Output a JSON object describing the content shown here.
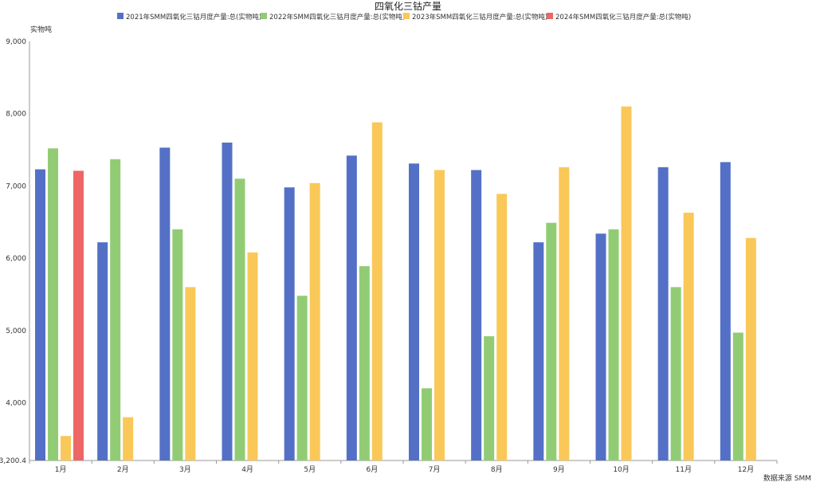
{
  "chart_data": {
    "type": "bar",
    "title": "四氧化三钴产量",
    "ylabel": "实物吨",
    "source": "数据来源 SMM",
    "categories": [
      "1月",
      "2月",
      "3月",
      "4月",
      "5月",
      "6月",
      "7月",
      "8月",
      "9月",
      "10月",
      "11月",
      "12月"
    ],
    "ylim": [
      3200.4,
      9000
    ],
    "yticks": [
      3200.4,
      4000,
      5000,
      6000,
      7000,
      8000,
      9000
    ],
    "ytick_labels": [
      "3,200.4",
      "4,000",
      "5,000",
      "6,000",
      "7,000",
      "8,000",
      "9,000"
    ],
    "legend_position": "top-center",
    "grid": false,
    "series": [
      {
        "name": "2021年SMM四氧化三钴月度产量:总(实物吨)",
        "color": "#5470c6",
        "values": [
          7230,
          6220,
          7530,
          7600,
          6980,
          7420,
          7310,
          7220,
          6220,
          6340,
          7260,
          7330
        ]
      },
      {
        "name": "2022年SMM四氧化三钴月度产量:总(实物吨)",
        "color": "#91cc75",
        "values": [
          7520,
          7370,
          6400,
          7100,
          5480,
          5890,
          4200,
          4920,
          6490,
          6400,
          5600,
          4970
        ]
      },
      {
        "name": "2023年SMM四氧化三钴月度产量:总(实物吨)",
        "color": "#fac858",
        "values": [
          3540,
          3800,
          5600,
          6080,
          7040,
          7880,
          7220,
          6890,
          7260,
          8100,
          6630,
          6280
        ]
      },
      {
        "name": "2024年SMM四氧化三钴月度产量:总(实物吨)",
        "color": "#ee6666",
        "values": [
          7210,
          null,
          null,
          null,
          null,
          null,
          null,
          null,
          null,
          null,
          null,
          null
        ]
      }
    ]
  }
}
